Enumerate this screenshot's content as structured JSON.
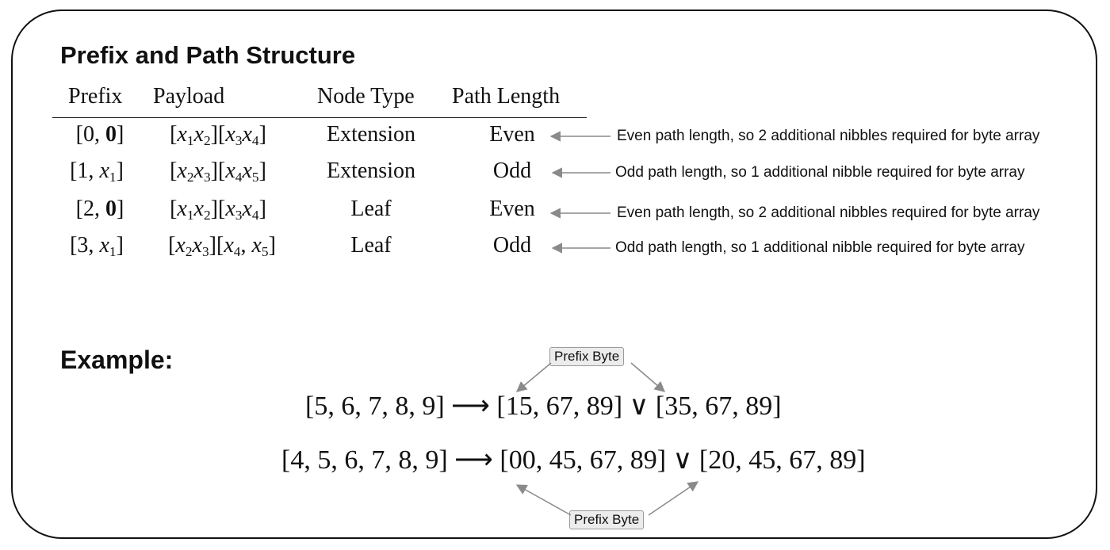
{
  "section_title": "Prefix and Path Structure",
  "table": {
    "headers": [
      "Prefix",
      "Payload",
      "Node Type",
      "Path Length"
    ],
    "rows": [
      {
        "prefix_html": "[0, <b>0</b>]",
        "payload_html": "[<i>x</i><sub>1</sub><i>x</i><sub>2</sub>][<i>x</i><sub>3</sub><i>x</i><sub>4</sub>]",
        "node_type": "Extension",
        "path_length": "Even",
        "note": "Even path length, so 2 additional nibbles required for byte array"
      },
      {
        "prefix_html": "[1, <i>x</i><sub>1</sub>]",
        "payload_html": "[<i>x</i><sub>2</sub><i>x</i><sub>3</sub>][<i>x</i><sub>4</sub><i>x</i><sub>5</sub>]",
        "node_type": "Extension",
        "path_length": "Odd",
        "note": "Odd path length, so 1 additional nibble required for byte array"
      },
      {
        "prefix_html": "[2, <b>0</b>]",
        "payload_html": "[<i>x</i><sub>1</sub><i>x</i><sub>2</sub>][<i>x</i><sub>3</sub><i>x</i><sub>4</sub>]",
        "node_type": "Leaf",
        "path_length": "Even",
        "note": "Even path length, so 2 additional nibbles required for byte array"
      },
      {
        "prefix_html": "[3, <i>x</i><sub>1</sub>]",
        "payload_html": "[<i>x</i><sub>2</sub><i>x</i><sub>3</sub>][<i>x</i><sub>4</sub>, <i>x</i><sub>5</sub>]",
        "node_type": "Leaf",
        "path_length": "Odd",
        "note": "Odd path length, so 1 additional nibble required for byte array"
      }
    ]
  },
  "example": {
    "title": "Example:",
    "equations": [
      "[5, 6, 7, 8, 9] ⟶ [15, 67, 89] ∨ [35, 67, 89]",
      "[4, 5, 6, 7, 8, 9] ⟶ [00, 45, 67, 89] ∨ [20, 45, 67, 89]"
    ],
    "badges": [
      "Prefix Byte",
      "Prefix Byte"
    ]
  },
  "colors": {
    "text": "#111111",
    "arrow": "#8a8a8a",
    "badge_fill": "#ececec",
    "badge_border": "#9a9a9a"
  }
}
